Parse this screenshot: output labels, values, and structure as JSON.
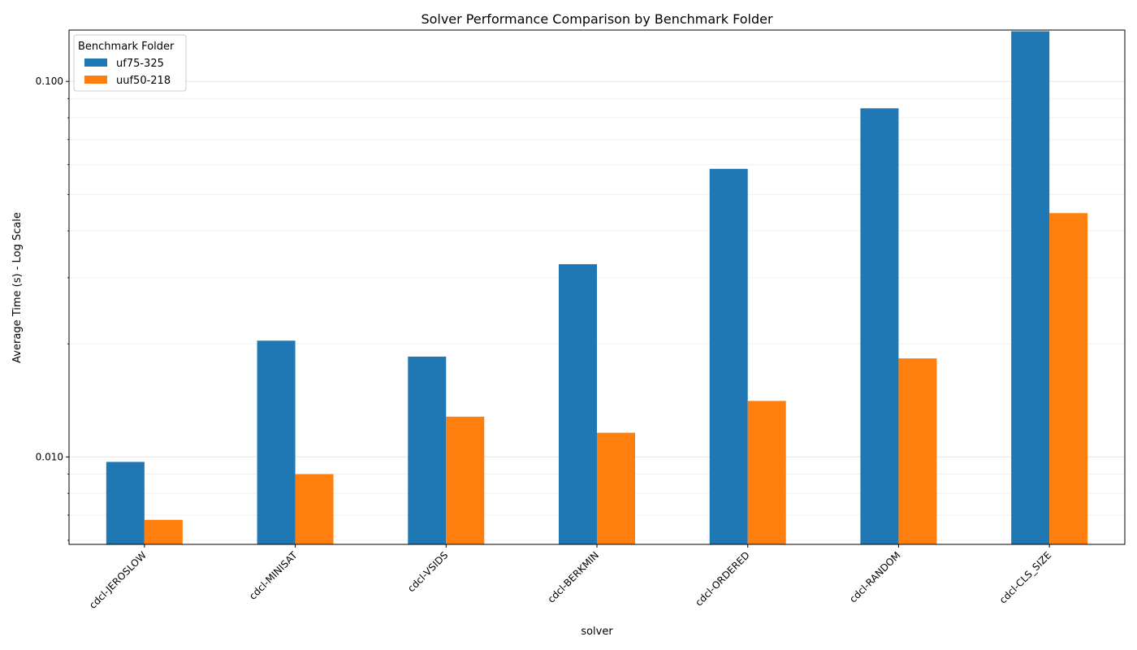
{
  "chart_data": {
    "type": "bar",
    "title": "Solver Performance Comparison by Benchmark Folder",
    "xlabel": "solver",
    "ylabel": "Average Time (s) - Log Scale",
    "yscale": "log",
    "ylim": [
      0.00585,
      0.137
    ],
    "yticks": [
      0.01,
      0.1
    ],
    "ytick_labels": [
      "0.010",
      "0.100"
    ],
    "categories": [
      "cdcl-JEROSLOW",
      "cdcl-MINISAT",
      "cdcl-VSIDS",
      "cdcl-BERKMIN",
      "cdcl-ORDERED",
      "cdcl-RANDOM",
      "cdcl-CLS_SIZE"
    ],
    "series": [
      {
        "name": "uf75-325",
        "color": "#1f77b4",
        "values": [
          0.0097,
          0.0204,
          0.0185,
          0.0326,
          0.0585,
          0.0848,
          0.136
        ]
      },
      {
        "name": "uuf50-218",
        "color": "#ff7f0e",
        "values": [
          0.0068,
          0.009,
          0.0128,
          0.0116,
          0.0141,
          0.0183,
          0.0446
        ]
      }
    ],
    "legend": {
      "title": "Benchmark Folder",
      "position": "top-left"
    },
    "grid": true
  }
}
